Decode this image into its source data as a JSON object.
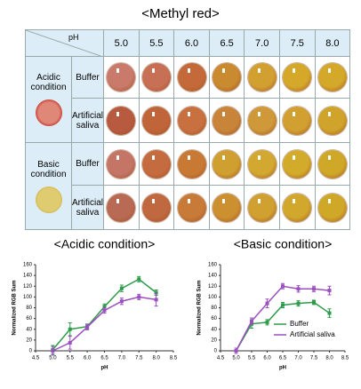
{
  "title": "<Methyl red>",
  "table": {
    "corner": "pH",
    "columns": [
      "5.0",
      "5.5",
      "6.0",
      "6.5",
      "7.0",
      "7.5",
      "8.0"
    ],
    "groups": [
      {
        "label": "Acidic condition",
        "rows": [
          "Buffer",
          "Artificial saliva"
        ]
      },
      {
        "label": "Basic condition",
        "rows": [
          "Buffer",
          "Artificial saliva"
        ]
      }
    ]
  },
  "chart_data": [
    {
      "type": "line",
      "title": "<Acidic condition>",
      "xlabel": "pH",
      "ylabel": "Normalized RGB Sum",
      "x": [
        5,
        5.5,
        6,
        6.5,
        7,
        7.5,
        8
      ],
      "xlim": [
        4.5,
        8.5
      ],
      "xticks": [
        4.5,
        {
          "value": 5,
          "label": "5.0"
        },
        5.5,
        {
          "value": 6,
          "label": "6.0"
        },
        6.5,
        {
          "value": 7,
          "label": "7.0"
        },
        7.5,
        {
          "value": 8,
          "label": "8.0"
        },
        8.5
      ],
      "ylim": [
        0,
        160
      ],
      "yticks": [
        0,
        20,
        40,
        60,
        80,
        100,
        120,
        140,
        160
      ],
      "series": [
        {
          "color": "#2e9b4a",
          "values": [
            2,
            40,
            45,
            82,
            116,
            133,
            108
          ],
          "errors": [
            8,
            12,
            5,
            5,
            6,
            5,
            5
          ]
        },
        {
          "color": "#9b4fc0",
          "values": [
            0,
            15,
            44,
            75,
            92,
            100,
            95
          ],
          "errors": [
            8,
            12,
            5,
            5,
            6,
            5,
            12
          ]
        }
      ]
    },
    {
      "type": "line",
      "title": "<Basic condition>",
      "xlabel": "pH",
      "ylabel": "Normalized RGB Sum",
      "x": [
        5,
        5.5,
        6,
        6.5,
        7,
        7.5,
        8
      ],
      "xlim": [
        4.5,
        8.5
      ],
      "xticks": [
        4.5,
        {
          "value": 5,
          "label": "5.0"
        },
        5.5,
        {
          "value": 6,
          "label": "6.0"
        },
        6.5,
        {
          "value": 7,
          "label": "7.0"
        },
        7.5,
        {
          "value": 8,
          "label": "8.0"
        },
        8.5
      ],
      "ylim": [
        0,
        160
      ],
      "yticks": [
        0,
        20,
        40,
        60,
        80,
        100,
        120,
        140,
        160
      ],
      "legend": "lower right",
      "series": [
        {
          "name": "Buffer",
          "color": "#2e9b4a",
          "values": [
            0,
            50,
            53,
            85,
            88,
            90,
            70
          ],
          "errors": [
            5,
            8,
            5,
            5,
            5,
            4,
            8
          ]
        },
        {
          "name": "Artificial saliva",
          "color": "#9b4fc0",
          "values": [
            0,
            55,
            88,
            120,
            115,
            115,
            112
          ],
          "errors": [
            5,
            6,
            8,
            5,
            6,
            5,
            8
          ]
        }
      ]
    }
  ]
}
